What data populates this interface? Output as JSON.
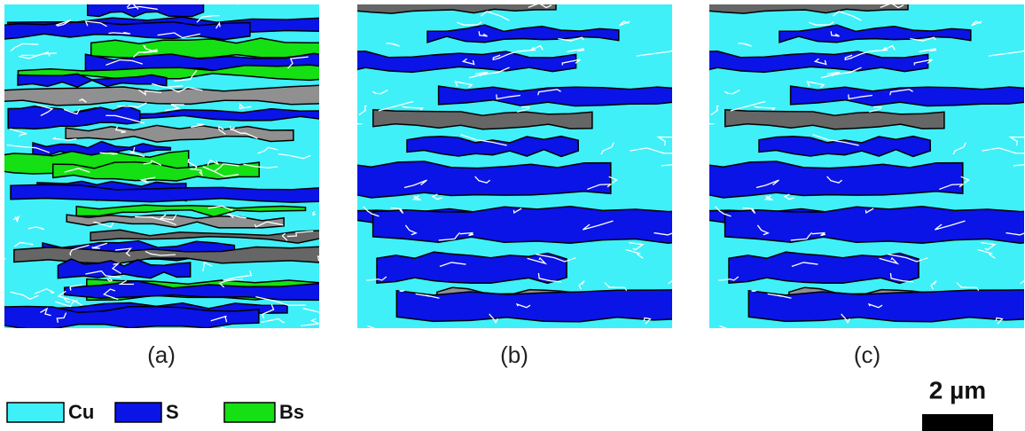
{
  "panels": [
    {
      "label": "(a)"
    },
    {
      "label": "(b)"
    },
    {
      "label": "(c)"
    }
  ],
  "legend": [
    {
      "label": "Cu",
      "color": "#3ff0f8"
    },
    {
      "label": "S",
      "color": "#0a14e6"
    },
    {
      "label": "Bs",
      "color": "#14e014"
    }
  ],
  "scale_bar": {
    "label": "2 µm"
  }
}
